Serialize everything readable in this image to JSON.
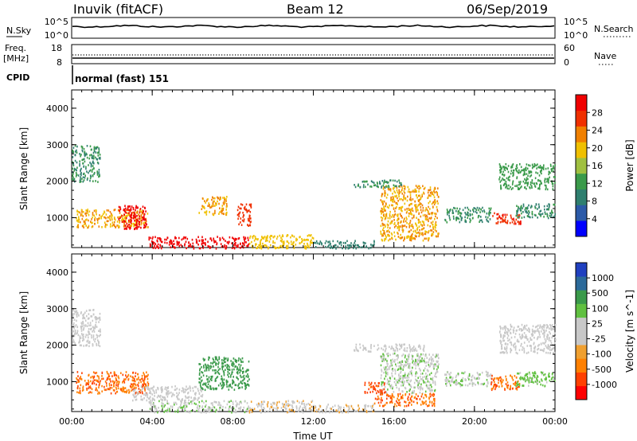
{
  "header": {
    "station": "Inuvik (fitACF)",
    "beam": "Beam 12",
    "date": "06/Sep/2019"
  },
  "top_panels": {
    "nsky_label": "N.Sky",
    "nsky_ticks": [
      "10^5",
      "10^0"
    ],
    "nsearch_label": "N.Search",
    "freq_label_1": "Freq.",
    "freq_label_2": "[MHz]",
    "freq_ticks": [
      "18",
      "8"
    ],
    "nave_label": "Nave",
    "nave_ticks": [
      "60",
      "0"
    ],
    "cpid_label": "CPID",
    "cpid_value": "normal (fast) 151"
  },
  "chart_data": [
    {
      "type": "heatmap",
      "title": "",
      "xlabel": "Time UT",
      "ylabel": "Slant Range [km]",
      "x_ticks": [
        "00:00",
        "04:00",
        "08:00",
        "12:00",
        "16:00",
        "20:00",
        "00:00"
      ],
      "x_range_hours": [
        0,
        24
      ],
      "y_ticks": [
        1000,
        2000,
        3000,
        4000
      ],
      "ylim": [
        180,
        4500
      ],
      "colorbar": {
        "label": "Power [dB]",
        "ticks": [
          "28",
          "24",
          "20",
          "16",
          "12",
          "8",
          "4"
        ],
        "range": [
          0,
          30
        ],
        "colors": [
          "#0000ff",
          "#2c5aa8",
          "#2f7f6f",
          "#3a9a4a",
          "#a0c040",
          "#f0c000",
          "#f08000",
          "#f03000",
          "#f00000"
        ]
      },
      "regions": [
        {
          "t0": 0.2,
          "t1": 3.8,
          "r0": 750,
          "r1": 1250,
          "value": 20
        },
        {
          "t0": 2.3,
          "t1": 3.7,
          "r0": 700,
          "r1": 1350,
          "value": 28
        },
        {
          "t0": 0.0,
          "t1": 1.4,
          "r0": 2000,
          "r1": 3000,
          "value": 10
        },
        {
          "t0": 3.8,
          "t1": 8.8,
          "r0": 180,
          "r1": 500,
          "value": 29
        },
        {
          "t0": 6.3,
          "t1": 7.7,
          "r0": 1100,
          "r1": 1600,
          "value": 20
        },
        {
          "t0": 8.2,
          "t1": 8.9,
          "r0": 800,
          "r1": 1400,
          "value": 25
        },
        {
          "t0": 8.8,
          "t1": 12.0,
          "r0": 180,
          "r1": 550,
          "value": 18
        },
        {
          "t0": 12.0,
          "t1": 15.0,
          "r0": 180,
          "r1": 400,
          "value": 8
        },
        {
          "t0": 15.3,
          "t1": 18.2,
          "r0": 400,
          "r1": 1900,
          "value": 20
        },
        {
          "t0": 14.0,
          "t1": 16.5,
          "r0": 1850,
          "r1": 2050,
          "value": 10
        },
        {
          "t0": 18.5,
          "t1": 20.8,
          "r0": 900,
          "r1": 1300,
          "value": 10
        },
        {
          "t0": 20.8,
          "t1": 22.3,
          "r0": 850,
          "r1": 1150,
          "value": 26
        },
        {
          "t0": 21.2,
          "t1": 24.0,
          "r0": 1800,
          "r1": 2500,
          "value": 12
        },
        {
          "t0": 22.0,
          "t1": 24.0,
          "r0": 1000,
          "r1": 1400,
          "value": 10
        }
      ]
    },
    {
      "type": "heatmap",
      "title": "",
      "xlabel": "Time UT",
      "ylabel": "Slant Range [km]",
      "x_ticks": [
        "00:00",
        "04:00",
        "08:00",
        "12:00",
        "16:00",
        "20:00",
        "00:00"
      ],
      "x_range_hours": [
        0,
        24
      ],
      "y_ticks": [
        1000,
        2000,
        3000,
        4000
      ],
      "ylim": [
        180,
        4500
      ],
      "colorbar": {
        "label": "Velocity [m s^-1]",
        "ticks": [
          "1000",
          "500",
          "100",
          "25",
          "-25",
          "-100",
          "-500",
          "-1000"
        ],
        "range": [
          -1200,
          1200
        ],
        "colors": [
          "#ff0000",
          "#ff4000",
          "#ff8000",
          "#f0a030",
          "#c8c8c8",
          "#c8c8c8",
          "#60c040",
          "#3a9a4a",
          "#2c6a9a",
          "#2040c0"
        ]
      },
      "regions": [
        {
          "t0": 0.2,
          "t1": 3.8,
          "r0": 700,
          "r1": 1300,
          "value": -700
        },
        {
          "t0": 0.0,
          "t1": 1.4,
          "r0": 2000,
          "r1": 3000,
          "value": 0
        },
        {
          "t0": 3.0,
          "t1": 6.5,
          "r0": 500,
          "r1": 900,
          "value": 0
        },
        {
          "t0": 3.8,
          "t1": 8.8,
          "r0": 180,
          "r1": 500,
          "value": 200
        },
        {
          "t0": 6.3,
          "t1": 8.8,
          "r0": 800,
          "r1": 1700,
          "value": 600
        },
        {
          "t0": 8.8,
          "t1": 12.0,
          "r0": 180,
          "r1": 500,
          "value": -200
        },
        {
          "t0": 12.0,
          "t1": 15.0,
          "r0": 180,
          "r1": 400,
          "value": -200
        },
        {
          "t0": 15.3,
          "t1": 18.2,
          "r0": 700,
          "r1": 1800,
          "value": 200
        },
        {
          "t0": 15.0,
          "t1": 18.0,
          "r0": 350,
          "r1": 700,
          "value": -700
        },
        {
          "t0": 14.5,
          "t1": 15.6,
          "r0": 700,
          "r1": 1000,
          "value": -800
        },
        {
          "t0": 14.0,
          "t1": 17.5,
          "r0": 1850,
          "r1": 2050,
          "value": 0
        },
        {
          "t0": 18.5,
          "t1": 20.8,
          "r0": 900,
          "r1": 1300,
          "value": 200
        },
        {
          "t0": 20.8,
          "t1": 22.3,
          "r0": 800,
          "r1": 1200,
          "value": -700
        },
        {
          "t0": 21.2,
          "t1": 24.0,
          "r0": 1800,
          "r1": 2600,
          "value": 0
        },
        {
          "t0": 22.0,
          "t1": 24.0,
          "r0": 900,
          "r1": 1300,
          "value": 300
        }
      ]
    }
  ]
}
